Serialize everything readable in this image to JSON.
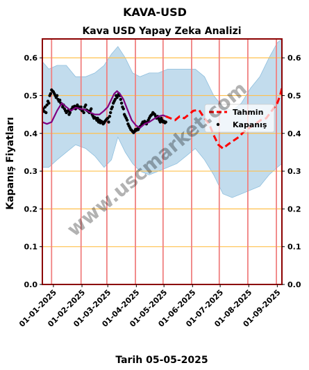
{
  "chart_data": {
    "type": "line",
    "suptitle": "KAVA-USD",
    "title": "Kava USD Yapay Zeka Analizi",
    "xlabel": "Tarih 05-05-2025",
    "ylabel": "Kapanış Fiyatları",
    "ylim": [
      0.0,
      0.65
    ],
    "yticks": [
      0.0,
      0.1,
      0.2,
      0.3,
      0.4,
      0.5,
      0.6
    ],
    "ytick_labels": [
      "0.0",
      "0.1",
      "0.2",
      "0.3",
      "0.4",
      "0.5",
      "0.6"
    ],
    "xlim": [
      "2024-12-20",
      "2025-09-06"
    ],
    "xticks": [
      "2025-01-01",
      "2025-02-01",
      "2025-03-01",
      "2025-04-01",
      "2025-05-01",
      "2025-06-01",
      "2025-07-01",
      "2025-08-01",
      "2025-09-01"
    ],
    "xtick_labels": [
      "01-01-2025",
      "01-02-2025",
      "01-03-2025",
      "01-04-2025",
      "01-05-2025",
      "01-06-2025",
      "01-07-2025",
      "01-08-2025",
      "01-09-2025"
    ],
    "vlines": [
      "2024-12-30",
      "2025-01-31",
      "2025-02-28",
      "2025-03-31",
      "2025-04-30",
      "2025-05-31",
      "2025-06-30",
      "2025-07-31",
      "2025-08-31"
    ],
    "grid": "horizontal",
    "legend_position": "right",
    "watermark": "www.uscmarket.com",
    "series": [
      {
        "name": "Kapanış",
        "kind": "scatter",
        "color": "#000000",
        "points": [
          [
            "2024-12-20",
            0.46
          ],
          [
            "2024-12-21",
            0.465
          ],
          [
            "2024-12-22",
            0.458
          ],
          [
            "2024-12-23",
            0.47
          ],
          [
            "2024-12-24",
            0.455
          ],
          [
            "2024-12-25",
            0.475
          ],
          [
            "2024-12-26",
            0.485
          ],
          [
            "2024-12-27",
            0.48
          ],
          [
            "2024-12-28",
            0.5
          ],
          [
            "2024-12-29",
            0.505
          ],
          [
            "2024-12-30",
            0.515
          ],
          [
            "2024-12-31",
            0.512
          ],
          [
            "2025-01-01",
            0.51
          ],
          [
            "2025-01-02",
            0.505
          ],
          [
            "2025-01-03",
            0.5
          ],
          [
            "2025-01-04",
            0.495
          ],
          [
            "2025-01-05",
            0.5
          ],
          [
            "2025-01-06",
            0.49
          ],
          [
            "2025-01-07",
            0.485
          ],
          [
            "2025-01-08",
            0.488
          ],
          [
            "2025-01-09",
            0.48
          ],
          [
            "2025-01-10",
            0.478
          ],
          [
            "2025-01-11",
            0.47
          ],
          [
            "2025-01-12",
            0.475
          ],
          [
            "2025-01-13",
            0.465
          ],
          [
            "2025-01-14",
            0.46
          ],
          [
            "2025-01-15",
            0.455
          ],
          [
            "2025-01-16",
            0.458
          ],
          [
            "2025-01-17",
            0.46
          ],
          [
            "2025-01-18",
            0.45
          ],
          [
            "2025-01-19",
            0.455
          ],
          [
            "2025-01-20",
            0.462
          ],
          [
            "2025-01-21",
            0.465
          ],
          [
            "2025-01-22",
            0.47
          ],
          [
            "2025-01-23",
            0.468
          ],
          [
            "2025-01-24",
            0.472
          ],
          [
            "2025-01-25",
            0.465
          ],
          [
            "2025-01-26",
            0.47
          ],
          [
            "2025-01-27",
            0.475
          ],
          [
            "2025-01-28",
            0.468
          ],
          [
            "2025-01-29",
            0.47
          ],
          [
            "2025-01-30",
            0.465
          ],
          [
            "2025-01-31",
            0.47
          ],
          [
            "2025-02-01",
            0.46
          ],
          [
            "2025-02-02",
            0.462
          ],
          [
            "2025-02-03",
            0.455
          ],
          [
            "2025-02-04",
            0.47
          ],
          [
            "2025-02-05",
            0.475
          ],
          [
            "2025-02-06",
            0.462
          ],
          [
            "2025-02-07",
            0.46
          ],
          [
            "2025-02-08",
            0.458
          ],
          [
            "2025-02-09",
            0.455
          ],
          [
            "2025-02-10",
            0.46
          ],
          [
            "2025-02-11",
            0.465
          ],
          [
            "2025-02-12",
            0.45
          ],
          [
            "2025-02-13",
            0.445
          ],
          [
            "2025-02-14",
            0.44
          ],
          [
            "2025-02-15",
            0.442
          ],
          [
            "2025-02-16",
            0.44
          ],
          [
            "2025-02-17",
            0.435
          ],
          [
            "2025-02-18",
            0.44
          ],
          [
            "2025-02-19",
            0.43
          ],
          [
            "2025-02-20",
            0.435
          ],
          [
            "2025-02-21",
            0.428
          ],
          [
            "2025-02-22",
            0.432
          ],
          [
            "2025-02-23",
            0.43
          ],
          [
            "2025-02-24",
            0.425
          ],
          [
            "2025-02-25",
            0.428
          ],
          [
            "2025-02-26",
            0.432
          ],
          [
            "2025-02-27",
            0.435
          ],
          [
            "2025-02-28",
            0.438
          ],
          [
            "2025-03-01",
            0.44
          ],
          [
            "2025-03-02",
            0.43
          ],
          [
            "2025-03-03",
            0.445
          ],
          [
            "2025-03-04",
            0.455
          ],
          [
            "2025-03-05",
            0.465
          ],
          [
            "2025-03-06",
            0.47
          ],
          [
            "2025-03-07",
            0.48
          ],
          [
            "2025-03-08",
            0.485
          ],
          [
            "2025-03-09",
            0.49
          ],
          [
            "2025-03-10",
            0.5
          ],
          [
            "2025-03-11",
            0.495
          ],
          [
            "2025-03-12",
            0.5
          ],
          [
            "2025-03-13",
            0.505
          ],
          [
            "2025-03-14",
            0.5
          ],
          [
            "2025-03-15",
            0.49
          ],
          [
            "2025-03-16",
            0.48
          ],
          [
            "2025-03-17",
            0.47
          ],
          [
            "2025-03-18",
            0.465
          ],
          [
            "2025-03-19",
            0.45
          ],
          [
            "2025-03-20",
            0.445
          ],
          [
            "2025-03-21",
            0.44
          ],
          [
            "2025-03-22",
            0.435
          ],
          [
            "2025-03-23",
            0.425
          ],
          [
            "2025-03-24",
            0.42
          ],
          [
            "2025-03-25",
            0.415
          ],
          [
            "2025-03-26",
            0.41
          ],
          [
            "2025-03-27",
            0.408
          ],
          [
            "2025-03-28",
            0.405
          ],
          [
            "2025-03-29",
            0.402
          ],
          [
            "2025-03-30",
            0.405
          ],
          [
            "2025-03-31",
            0.41
          ],
          [
            "2025-04-01",
            0.408
          ],
          [
            "2025-04-02",
            0.412
          ],
          [
            "2025-04-03",
            0.41
          ],
          [
            "2025-04-04",
            0.415
          ],
          [
            "2025-04-05",
            0.418
          ],
          [
            "2025-04-06",
            0.42
          ],
          [
            "2025-04-07",
            0.425
          ],
          [
            "2025-04-08",
            0.43
          ],
          [
            "2025-04-09",
            0.428
          ],
          [
            "2025-04-10",
            0.432
          ],
          [
            "2025-04-11",
            0.43
          ],
          [
            "2025-04-12",
            0.425
          ],
          [
            "2025-04-13",
            0.43
          ],
          [
            "2025-04-14",
            0.435
          ],
          [
            "2025-04-15",
            0.44
          ],
          [
            "2025-04-16",
            0.445
          ],
          [
            "2025-04-17",
            0.448
          ],
          [
            "2025-04-18",
            0.45
          ],
          [
            "2025-04-19",
            0.455
          ],
          [
            "2025-04-20",
            0.452
          ],
          [
            "2025-04-21",
            0.45
          ],
          [
            "2025-04-22",
            0.445
          ],
          [
            "2025-04-23",
            0.44
          ],
          [
            "2025-04-24",
            0.445
          ],
          [
            "2025-04-25",
            0.44
          ],
          [
            "2025-04-26",
            0.435
          ],
          [
            "2025-04-27",
            0.43
          ],
          [
            "2025-04-28",
            0.44
          ],
          [
            "2025-04-29",
            0.435
          ],
          [
            "2025-04-30",
            0.43
          ],
          [
            "2025-05-01",
            0.432
          ],
          [
            "2025-05-02",
            0.428
          ],
          [
            "2025-05-03",
            0.43
          ]
        ]
      },
      {
        "name": "",
        "kind": "line",
        "color": "#800080",
        "points": [
          [
            "2024-12-20",
            0.43
          ],
          [
            "2024-12-25",
            0.425
          ],
          [
            "2024-12-30",
            0.43
          ],
          [
            "2025-01-05",
            0.46
          ],
          [
            "2025-01-10",
            0.48
          ],
          [
            "2025-01-15",
            0.47
          ],
          [
            "2025-01-20",
            0.46
          ],
          [
            "2025-01-25",
            0.468
          ],
          [
            "2025-01-31",
            0.465
          ],
          [
            "2025-02-05",
            0.462
          ],
          [
            "2025-02-10",
            0.455
          ],
          [
            "2025-02-15",
            0.45
          ],
          [
            "2025-02-20",
            0.45
          ],
          [
            "2025-02-25",
            0.46
          ],
          [
            "2025-03-01",
            0.47
          ],
          [
            "2025-03-05",
            0.49
          ],
          [
            "2025-03-08",
            0.505
          ],
          [
            "2025-03-11",
            0.512
          ],
          [
            "2025-03-14",
            0.505
          ],
          [
            "2025-03-18",
            0.49
          ],
          [
            "2025-03-22",
            0.465
          ],
          [
            "2025-03-27",
            0.435
          ],
          [
            "2025-04-01",
            0.42
          ],
          [
            "2025-04-05",
            0.415
          ],
          [
            "2025-04-10",
            0.425
          ],
          [
            "2025-04-15",
            0.43
          ],
          [
            "2025-04-20",
            0.438
          ],
          [
            "2025-04-25",
            0.445
          ],
          [
            "2025-04-30",
            0.448
          ],
          [
            "2025-05-03",
            0.445
          ]
        ]
      },
      {
        "name": "Tahmin",
        "kind": "dashed-line",
        "color": "#ff0000",
        "points": [
          [
            "2025-05-03",
            0.445
          ],
          [
            "2025-05-08",
            0.44
          ],
          [
            "2025-05-13",
            0.435
          ],
          [
            "2025-05-18",
            0.445
          ],
          [
            "2025-05-23",
            0.44
          ],
          [
            "2025-05-28",
            0.45
          ],
          [
            "2025-06-02",
            0.46
          ],
          [
            "2025-06-08",
            0.462
          ],
          [
            "2025-06-14",
            0.44
          ],
          [
            "2025-06-19",
            0.425
          ],
          [
            "2025-06-24",
            0.395
          ],
          [
            "2025-06-29",
            0.37
          ],
          [
            "2025-07-04",
            0.36
          ],
          [
            "2025-07-09",
            0.37
          ],
          [
            "2025-07-15",
            0.38
          ],
          [
            "2025-07-21",
            0.39
          ],
          [
            "2025-07-27",
            0.405
          ],
          [
            "2025-08-02",
            0.415
          ],
          [
            "2025-08-08",
            0.425
          ],
          [
            "2025-08-14",
            0.435
          ],
          [
            "2025-08-20",
            0.44
          ],
          [
            "2025-08-26",
            0.46
          ],
          [
            "2025-09-01",
            0.48
          ],
          [
            "2025-09-04",
            0.5
          ],
          [
            "2025-09-06",
            0.52
          ]
        ]
      }
    ],
    "band": {
      "color": "#8fbfde",
      "points": [
        [
          "2024-12-20",
          0.59,
          0.31
        ],
        [
          "2024-12-27",
          0.57,
          0.31
        ],
        [
          "2025-01-05",
          0.58,
          0.33
        ],
        [
          "2025-01-15",
          0.58,
          0.35
        ],
        [
          "2025-01-25",
          0.55,
          0.37
        ],
        [
          "2025-02-05",
          0.55,
          0.36
        ],
        [
          "2025-02-15",
          0.56,
          0.34
        ],
        [
          "2025-02-25",
          0.58,
          0.31
        ],
        [
          "2025-03-05",
          0.61,
          0.33
        ],
        [
          "2025-03-12",
          0.63,
          0.39
        ],
        [
          "2025-03-20",
          0.6,
          0.35
        ],
        [
          "2025-03-28",
          0.56,
          0.32
        ],
        [
          "2025-04-05",
          0.55,
          0.3
        ],
        [
          "2025-04-15",
          0.56,
          0.29
        ],
        [
          "2025-04-25",
          0.56,
          0.3
        ],
        [
          "2025-05-05",
          0.57,
          0.31
        ],
        [
          "2025-05-15",
          0.57,
          0.32
        ],
        [
          "2025-05-25",
          0.57,
          0.34
        ],
        [
          "2025-06-04",
          0.57,
          0.36
        ],
        [
          "2025-06-14",
          0.55,
          0.33
        ],
        [
          "2025-06-24",
          0.5,
          0.29
        ],
        [
          "2025-07-04",
          0.47,
          0.24
        ],
        [
          "2025-07-14",
          0.46,
          0.23
        ],
        [
          "2025-07-24",
          0.48,
          0.24
        ],
        [
          "2025-08-03",
          0.52,
          0.25
        ],
        [
          "2025-08-13",
          0.55,
          0.26
        ],
        [
          "2025-08-23",
          0.6,
          0.29
        ],
        [
          "2025-09-01",
          0.64,
          0.31
        ],
        [
          "2025-09-06",
          0.65,
          0.32
        ]
      ]
    },
    "colors": {
      "frame": "#8b0000",
      "grid": "#ffc04c",
      "vline": "#f08080",
      "band": "#8fbfde",
      "purple": "#800080",
      "forecast": "#ff0000"
    }
  }
}
